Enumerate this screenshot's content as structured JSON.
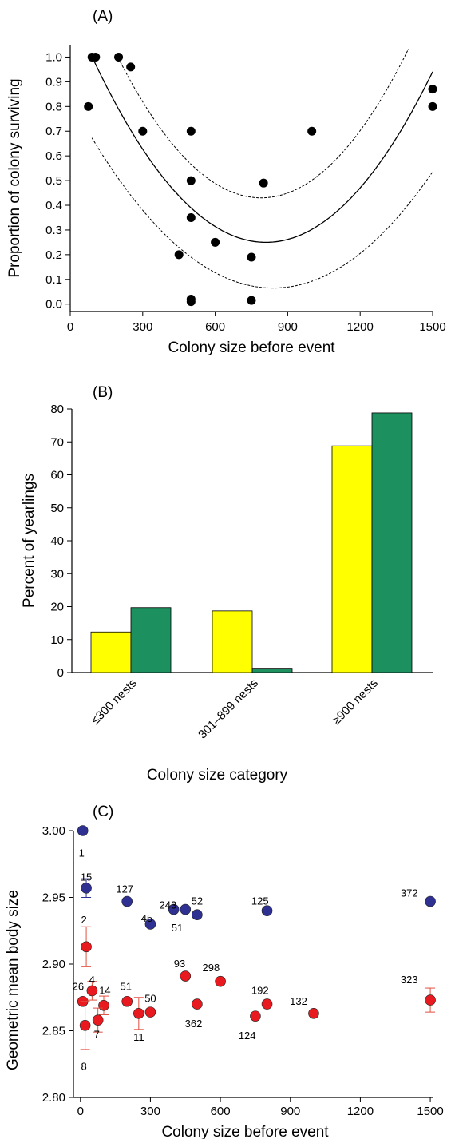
{
  "colors": {
    "black": "#000000",
    "yellow": "#ffff00",
    "green": "#1d9060",
    "blue": "#2e3192",
    "red": "#e8191f",
    "errorbar": "#e05040"
  },
  "chart_data": [
    {
      "id": "A",
      "panel_label": "(A)",
      "type": "scatter",
      "xlabel": "Colony size before event",
      "ylabel": "Proportion of colony surviving",
      "xlim": [
        0,
        1500
      ],
      "ylim": [
        -0.03,
        1.05
      ],
      "xticks": [
        0,
        300,
        600,
        900,
        1200,
        1500
      ],
      "yticks": [
        0.0,
        0.1,
        0.2,
        0.3,
        0.4,
        0.5,
        0.6,
        0.7,
        0.8,
        0.9,
        1.0
      ],
      "ytick_labels": [
        "0.0",
        "0.1",
        "0.2",
        "0.3",
        "0.4",
        "0.5",
        "0.6",
        "0.7",
        "0.8",
        "0.9",
        "1.0"
      ],
      "points": [
        {
          "x": 75,
          "y": 0.8
        },
        {
          "x": 90,
          "y": 1.0
        },
        {
          "x": 105,
          "y": 1.0
        },
        {
          "x": 200,
          "y": 1.0
        },
        {
          "x": 250,
          "y": 0.96
        },
        {
          "x": 300,
          "y": 0.7
        },
        {
          "x": 450,
          "y": 0.2
        },
        {
          "x": 500,
          "y": 0.7
        },
        {
          "x": 500,
          "y": 0.5
        },
        {
          "x": 500,
          "y": 0.35
        },
        {
          "x": 500,
          "y": 0.02
        },
        {
          "x": 500,
          "y": 0.01
        },
        {
          "x": 600,
          "y": 0.25
        },
        {
          "x": 750,
          "y": 0.19
        },
        {
          "x": 750,
          "y": 0.015
        },
        {
          "x": 800,
          "y": 0.49
        },
        {
          "x": 1000,
          "y": 0.7
        },
        {
          "x": 1500,
          "y": 0.87
        },
        {
          "x": 1500,
          "y": 0.8
        }
      ],
      "fit_curve": {
        "x0": 90,
        "x1": 1500,
        "vertex_x": 810,
        "vertex_y": 0.25,
        "curvature": 1.45e-06
      },
      "upper_band": {
        "x0": 200,
        "x1": 1400,
        "vertex_x": 790,
        "vertex_y": 0.43,
        "curvature": 1.62e-06
      },
      "lower_band": {
        "x0": 90,
        "x1": 1500,
        "vertex_x": 840,
        "vertex_y": 0.065,
        "curvature": 1.08e-06
      }
    },
    {
      "id": "B",
      "panel_label": "(B)",
      "type": "bar",
      "xlabel": "Colony size category",
      "ylabel": "Percent of yearlings",
      "ylim": [
        0,
        80
      ],
      "yticks": [
        0,
        10,
        20,
        30,
        40,
        50,
        60,
        70,
        80
      ],
      "categories": [
        "≤300 nests",
        "301–899 nests",
        "≥900 nests"
      ],
      "series": [
        {
          "color": "#ffff00",
          "values": [
            12.3,
            18.7,
            68.8
          ]
        },
        {
          "color": "#1d9060",
          "values": [
            19.7,
            1.3,
            78.8
          ]
        }
      ]
    },
    {
      "id": "C",
      "panel_label": "(C)",
      "type": "scatter",
      "xlabel": "Colony size before event",
      "ylabel": "Geometric mean body size",
      "xlim": [
        -30,
        1510
      ],
      "ylim": [
        2.8,
        3.0
      ],
      "xticks": [
        0,
        300,
        600,
        900,
        1200,
        1500
      ],
      "yticks": [
        2.8,
        2.85,
        2.9,
        2.95,
        3.0
      ],
      "ytick_labels": [
        "2.80",
        "2.85",
        "2.90",
        "2.95",
        "3.00"
      ],
      "series": [
        {
          "color": "#2e3192",
          "points": [
            {
              "x": 10,
              "y": 3.0,
              "label": "1",
              "lx": 5,
              "ly": 2.983
            },
            {
              "x": 25,
              "y": 2.957,
              "err": 0.007,
              "label": "15",
              "lx": 25,
              "ly": 2.965
            },
            {
              "x": 200,
              "y": 2.947,
              "label": "127",
              "lx": 190,
              "ly": 2.956
            },
            {
              "x": 300,
              "y": 2.93,
              "label": "45",
              "lx": 285,
              "ly": 2.934
            },
            {
              "x": 400,
              "y": 2.941,
              "label": "243",
              "lx": 375,
              "ly": 2.944
            },
            {
              "x": 450,
              "y": 2.941,
              "label": "51",
              "lx": 415,
              "ly": 2.927
            },
            {
              "x": 500,
              "y": 2.937,
              "label": "52",
              "lx": 500,
              "ly": 2.947
            },
            {
              "x": 800,
              "y": 2.94,
              "label": "125",
              "lx": 770,
              "ly": 2.947
            },
            {
              "x": 1500,
              "y": 2.947,
              "label": "372",
              "lx": 1410,
              "ly": 2.953
            }
          ]
        },
        {
          "color": "#e8191f",
          "points": [
            {
              "x": 25,
              "y": 2.913,
              "err": 0.015,
              "label": "2",
              "lx": 15,
              "ly": 2.933
            },
            {
              "x": 10,
              "y": 2.872,
              "label": "26",
              "lx": -10,
              "ly": 2.883
            },
            {
              "x": 50,
              "y": 2.88,
              "err": 0.007,
              "label": "4",
              "lx": 50,
              "ly": 2.888
            },
            {
              "x": 100,
              "y": 2.869,
              "err": 0.007,
              "label": "14",
              "lx": 105,
              "ly": 2.88
            },
            {
              "x": 20,
              "y": 2.854,
              "err": 0.018,
              "label": "8",
              "lx": 15,
              "ly": 2.823
            },
            {
              "x": 75,
              "y": 2.858,
              "err": 0.009,
              "label": "7",
              "lx": 70,
              "ly": 2.847
            },
            {
              "x": 200,
              "y": 2.872,
              "label": "51",
              "lx": 195,
              "ly": 2.883
            },
            {
              "x": 250,
              "y": 2.863,
              "err": 0.012,
              "label": "11",
              "lx": 250,
              "ly": 2.845
            },
            {
              "x": 300,
              "y": 2.864,
              "label": "50",
              "lx": 300,
              "ly": 2.874
            },
            {
              "x": 450,
              "y": 2.891,
              "label": "93",
              "lx": 425,
              "ly": 2.9
            },
            {
              "x": 500,
              "y": 2.87,
              "label": "362",
              "lx": 485,
              "ly": 2.855
            },
            {
              "x": 600,
              "y": 2.887,
              "label": "298",
              "lx": 560,
              "ly": 2.897
            },
            {
              "x": 750,
              "y": 2.861,
              "label": "124",
              "lx": 715,
              "ly": 2.846
            },
            {
              "x": 800,
              "y": 2.87,
              "label": "192",
              "lx": 770,
              "ly": 2.88
            },
            {
              "x": 1000,
              "y": 2.863,
              "label": "132",
              "lx": 935,
              "ly": 2.872
            },
            {
              "x": 1500,
              "y": 2.873,
              "err": 0.009,
              "label": "323",
              "lx": 1410,
              "ly": 2.888
            }
          ]
        }
      ]
    }
  ]
}
